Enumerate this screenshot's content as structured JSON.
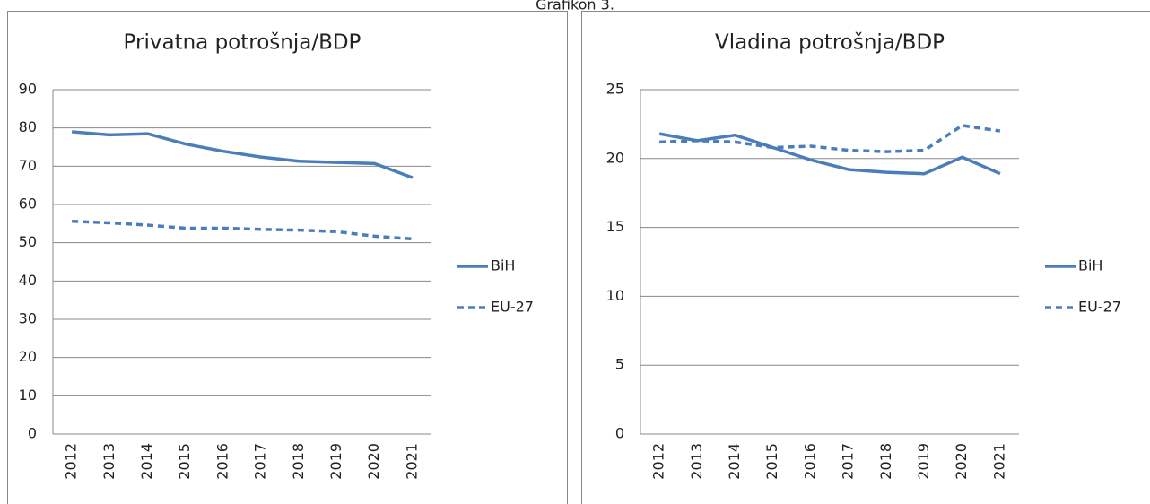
{
  "caption": "Grafikon 3.",
  "chart_data": [
    {
      "type": "line",
      "title": "Privatna potrošnja/BDP",
      "categories": [
        "2012",
        "2013",
        "2014",
        "2015",
        "2016",
        "2017",
        "2018",
        "2019",
        "2020",
        "2021"
      ],
      "series": [
        {
          "name": "BiH",
          "color": "#4a7ebb",
          "line_style": "solid",
          "values": [
            79,
            78.2,
            78.5,
            75.8,
            73.9,
            72.4,
            71.3,
            71,
            70.7,
            67
          ]
        },
        {
          "name": "EU-27",
          "color": "#4a7ebb",
          "line_style": "dashed",
          "values": [
            55.6,
            55.2,
            54.6,
            53.8,
            53.8,
            53.5,
            53.3,
            52.9,
            51.7,
            51
          ]
        }
      ],
      "ylim": [
        0,
        90
      ],
      "yticks": [
        0,
        10,
        20,
        30,
        40,
        50,
        60,
        70,
        80,
        90
      ],
      "grid": true,
      "legend": "right"
    },
    {
      "type": "line",
      "title": "Vladina potrošnja/BDP",
      "categories": [
        "2012",
        "2013",
        "2014",
        "2015",
        "2016",
        "2017",
        "2018",
        "2019",
        "2020",
        "2021"
      ],
      "series": [
        {
          "name": "BiH",
          "color": "#4a7ebb",
          "line_style": "solid",
          "values": [
            21.8,
            21.3,
            21.7,
            20.8,
            19.9,
            19.2,
            19.0,
            18.9,
            20.1,
            18.9
          ]
        },
        {
          "name": "EU-27",
          "color": "#4a7ebb",
          "line_style": "dashed",
          "values": [
            21.2,
            21.3,
            21.2,
            20.8,
            20.9,
            20.6,
            20.5,
            20.6,
            22.4,
            22.0
          ]
        }
      ],
      "ylim": [
        0,
        25
      ],
      "yticks": [
        0,
        5,
        10,
        15,
        20,
        25
      ],
      "grid": true,
      "legend": "right"
    }
  ]
}
